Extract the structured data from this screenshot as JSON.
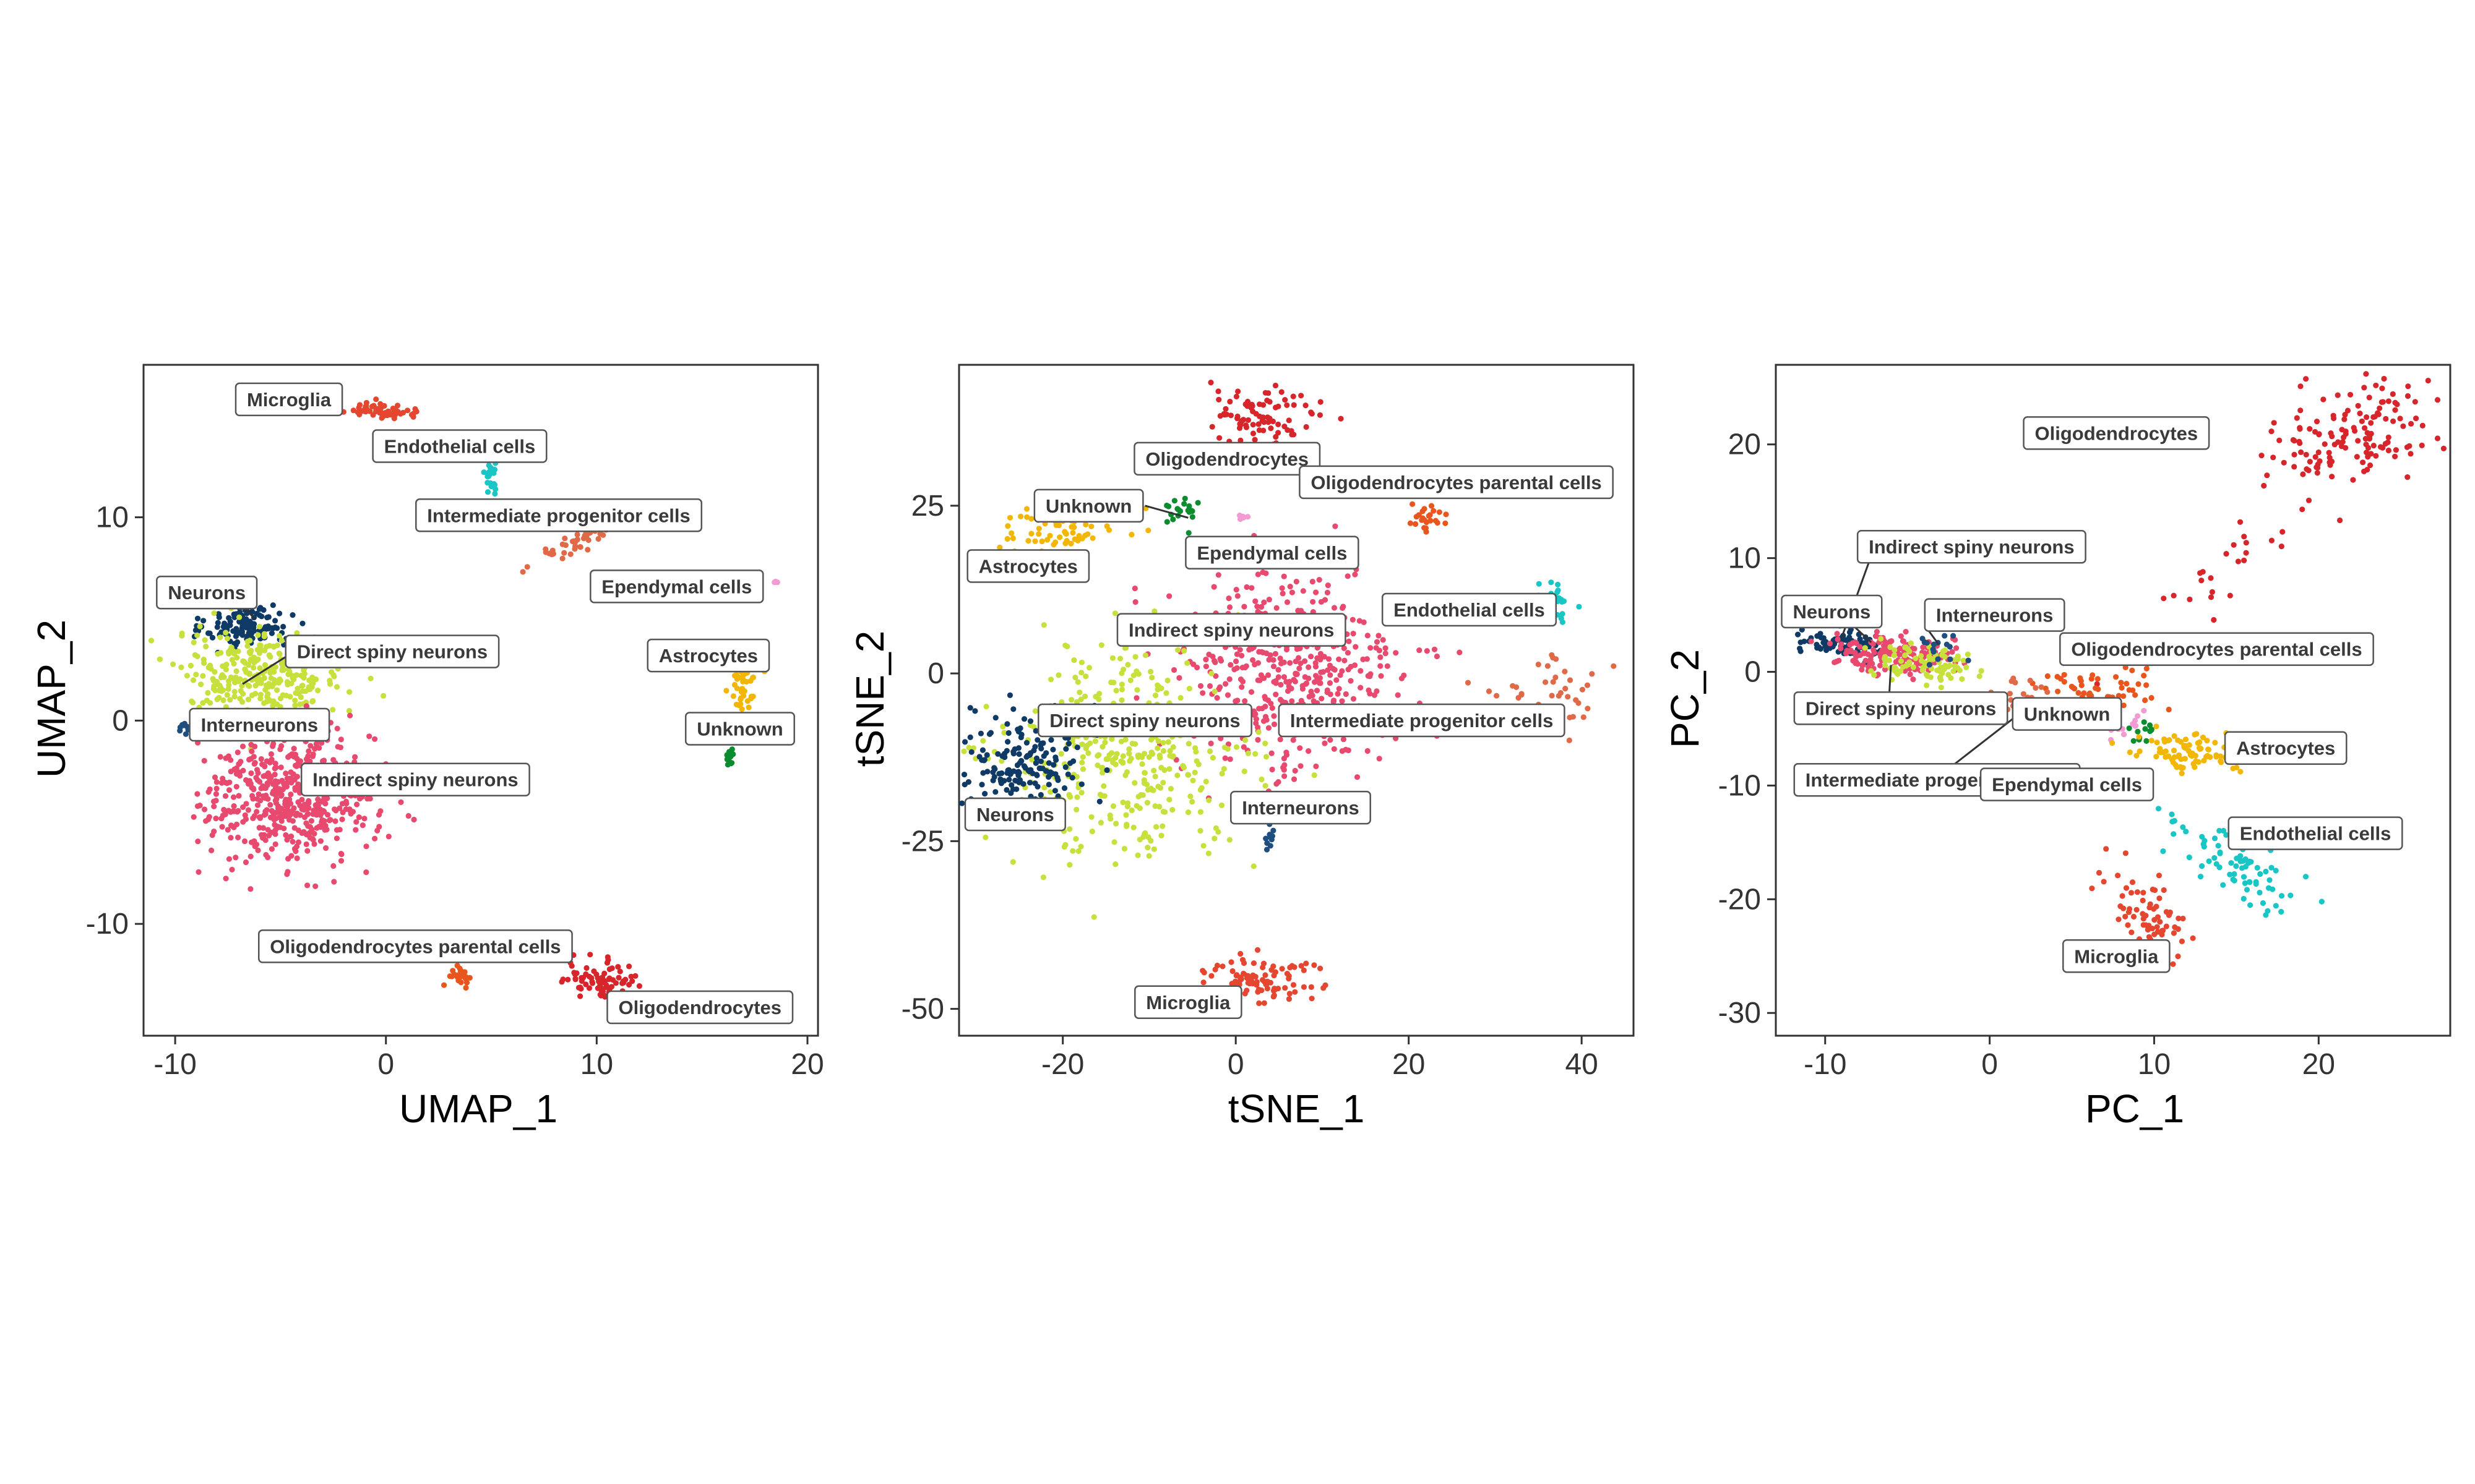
{
  "palette": {
    "Oligodendrocytes": "#d7262b",
    "Microglia": "#e4462f",
    "Endothelial cells": "#19c5c5",
    "Intermediate progenitor cells": "#e06a48",
    "Ependymal cells": "#f29ad2",
    "Astrocytes": "#f2b705",
    "Unknown": "#0b8c2e",
    "Neurons": "#0f3a66",
    "Direct spiny neurons": "#c8e03c",
    "Interneurons": "#1f4f80",
    "Indirect spiny neurons": "#e8496e",
    "Oligodendrocytes parental cells": "#e8561e"
  },
  "chart_data": [
    {
      "type": "scatter",
      "xlabel": "UMAP_1",
      "ylabel": "UMAP_2",
      "xlim": [
        -11.5,
        20.5
      ],
      "ylim": [
        -15.5,
        17.5
      ],
      "xticks": [
        -10,
        0,
        10,
        20
      ],
      "xtick_labels": [
        "-10",
        "0",
        "10",
        "20"
      ],
      "yticks": [
        -10,
        0,
        10
      ],
      "ytick_labels": [
        "-10",
        "0",
        "10"
      ],
      "clusters": [
        {
          "name": "Microglia",
          "cx": -0.5,
          "cy": 15.3,
          "sx": 1.0,
          "sy": 0.2,
          "n": 60,
          "angle": -5,
          "label": {
            "text": "Microglia",
            "x": -4.6,
            "y": 15.8
          }
        },
        {
          "name": "Endothelial cells",
          "cx": 5.0,
          "cy": 12.0,
          "sx": 0.15,
          "sy": 0.6,
          "n": 25,
          "angle": 0,
          "label": {
            "text": "Endothelial cells",
            "x": 3.5,
            "y": 13.5
          }
        },
        {
          "name": "Intermediate progenitor cells",
          "cx": 9.0,
          "cy": 8.8,
          "sx": 1.2,
          "sy": 0.3,
          "n": 45,
          "angle": 30,
          "label": {
            "text": "Intermediate progenitor cells",
            "x": 8.2,
            "y": 10.1
          }
        },
        {
          "name": "Ependymal cells",
          "cx": 18.5,
          "cy": 6.9,
          "sx": 0.08,
          "sy": 0.1,
          "n": 4,
          "angle": 0,
          "label": {
            "text": "Ependymal cells",
            "x": 13.8,
            "y": 6.6
          }
        },
        {
          "name": "Astrocytes",
          "cx": 17.0,
          "cy": 1.8,
          "sx": 0.3,
          "sy": 0.8,
          "n": 50,
          "angle": 0,
          "label": {
            "text": "Astrocytes",
            "x": 15.3,
            "y": 3.2
          }
        },
        {
          "name": "Unknown",
          "cx": 16.3,
          "cy": -1.8,
          "sx": 0.1,
          "sy": 0.3,
          "n": 15,
          "angle": 0,
          "label": {
            "text": "Unknown",
            "x": 16.8,
            "y": -0.4
          }
        },
        {
          "name": "Neurons",
          "cx": -6.5,
          "cy": 4.6,
          "sx": 1.0,
          "sy": 0.55,
          "n": 130,
          "angle": 0,
          "label": {
            "text": "Neurons",
            "x": -8.5,
            "y": 6.3
          }
        },
        {
          "name": "Direct spiny neurons",
          "cx": -6.0,
          "cy": 2.2,
          "sx": 2.0,
          "sy": 1.1,
          "n": 300,
          "angle": 0,
          "label": {
            "text": "Direct spiny neurons",
            "x": 0.3,
            "y": 3.4
          }
        },
        {
          "name": "Interneurons",
          "cx": -9.5,
          "cy": -0.4,
          "sx": 0.3,
          "sy": 0.12,
          "n": 10,
          "angle": -30,
          "label": {
            "text": "Interneurons",
            "x": -6.0,
            "y": -0.2
          }
        },
        {
          "name": "Indirect spiny neurons",
          "cx": -4.5,
          "cy": -3.8,
          "sx": 2.0,
          "sy": 1.6,
          "n": 520,
          "angle": 0,
          "label": {
            "text": "Indirect spiny neurons",
            "x": 1.4,
            "y": -2.9
          }
        },
        {
          "name": "Oligodendrocytes parental cells",
          "cx": 3.5,
          "cy": -12.5,
          "sx": 0.3,
          "sy": 0.3,
          "n": 25,
          "angle": 0,
          "label": {
            "text": "Oligodendrocytes parental cells",
            "x": 1.4,
            "y": -11.1
          }
        },
        {
          "name": "Oligodendrocytes",
          "cx": 10.3,
          "cy": -12.8,
          "sx": 0.9,
          "sy": 0.45,
          "n": 80,
          "angle": -20,
          "label": {
            "text": "Oligodendrocytes",
            "x": 14.9,
            "y": -14.1
          }
        }
      ],
      "leaders": [
        {
          "x1": -6.8,
          "y1": 1.8,
          "x2": -4.5,
          "y2": 3.3
        },
        {
          "x1": -6.8,
          "y1": 5.6,
          "x2": -6.2,
          "y2": 5.0
        }
      ]
    },
    {
      "type": "scatter",
      "xlabel": "tSNE_1",
      "ylabel": "tSNE_2",
      "xlim": [
        -32,
        46
      ],
      "ylim": [
        -54,
        46
      ],
      "xticks": [
        -20,
        0,
        20,
        40
      ],
      "xtick_labels": [
        "-20",
        "0",
        "20",
        "40"
      ],
      "yticks": [
        -50,
        -25,
        0,
        25
      ],
      "ytick_labels": [
        "-50",
        "-25",
        "0",
        "25"
      ],
      "clusters": [
        {
          "name": "Oligodendrocytes",
          "cx": 3.0,
          "cy": 38.0,
          "sx": 3.5,
          "sy": 2.5,
          "n": 90,
          "angle": 0,
          "label": {
            "text": "Oligodendrocytes",
            "x": -1.0,
            "y": 32.0
          }
        },
        {
          "name": "Oligodendrocytes parental cells",
          "cx": 22.0,
          "cy": 23.0,
          "sx": 1.3,
          "sy": 1.2,
          "n": 25,
          "angle": 0,
          "label": {
            "text": "Oligodendrocytes parental cells",
            "x": 25.5,
            "y": 28.5
          }
        },
        {
          "name": "Unknown",
          "cx": -6.0,
          "cy": 24.0,
          "sx": 1.0,
          "sy": 1.0,
          "n": 20,
          "angle": 0,
          "label": {
            "text": "Unknown",
            "x": -17.0,
            "y": 25.0
          }
        },
        {
          "name": "Ependymal cells",
          "cx": 0.5,
          "cy": 23.3,
          "sx": 0.5,
          "sy": 0.2,
          "n": 5,
          "angle": 0,
          "label": {
            "text": "Ependymal cells",
            "x": 4.2,
            "y": 18.0
          }
        },
        {
          "name": "Astrocytes",
          "cx": -20.0,
          "cy": 22.0,
          "sx": 4.0,
          "sy": 1.8,
          "n": 70,
          "angle": 0,
          "label": {
            "text": "Astrocytes",
            "x": -24.0,
            "y": 16.0
          }
        },
        {
          "name": "Endothelial cells",
          "cx": 37.0,
          "cy": 11.0,
          "sx": 1.0,
          "sy": 1.3,
          "n": 30,
          "angle": 0,
          "label": {
            "text": "Endothelial cells",
            "x": 27.0,
            "y": 9.5
          }
        },
        {
          "name": "Indirect spiny neurons",
          "cx": 6.0,
          "cy": 0.0,
          "sx": 6.5,
          "sy": 8.0,
          "n": 500,
          "angle": 0,
          "label": {
            "text": "Indirect spiny neurons",
            "x": -0.5,
            "y": 6.5
          }
        },
        {
          "name": "Intermediate progenitor cells",
          "cx": 36.0,
          "cy": -3.0,
          "sx": 4.0,
          "sy": 3.0,
          "n": 40,
          "angle": -35,
          "label": {
            "text": "Intermediate progenitor cells",
            "x": 21.5,
            "y": -7.0
          }
        },
        {
          "name": "Direct spiny neurons",
          "cx": -13.0,
          "cy": -12.0,
          "sx": 7.0,
          "sy": 7.5,
          "n": 400,
          "angle": 0,
          "label": {
            "text": "Direct spiny neurons",
            "x": -10.5,
            "y": -7.0
          }
        },
        {
          "name": "Neurons",
          "cx": -24.0,
          "cy": -13.0,
          "sx": 3.5,
          "sy": 4.0,
          "n": 180,
          "angle": 0,
          "label": {
            "text": "Neurons",
            "x": -25.5,
            "y": -21.0
          }
        },
        {
          "name": "Interneurons",
          "cx": 3.7,
          "cy": -24.0,
          "sx": 0.5,
          "sy": 1.0,
          "n": 10,
          "angle": 0,
          "label": {
            "text": "Interneurons",
            "x": 7.5,
            "y": -20.0
          }
        },
        {
          "name": "Microglia",
          "cx": 2.5,
          "cy": -45.5,
          "sx": 3.0,
          "sy": 2.0,
          "n": 90,
          "angle": 0,
          "label": {
            "text": "Microglia",
            "x": -5.5,
            "y": -49.0
          }
        }
      ],
      "leaders": [
        {
          "x1": -10.5,
          "y1": 25.0,
          "x2": -5.5,
          "y2": 23.2
        }
      ]
    },
    {
      "type": "scatter",
      "xlabel": "PC_1",
      "ylabel": "PC_2",
      "xlim": [
        -13,
        28
      ],
      "ylim": [
        -32,
        27
      ],
      "xticks": [
        -10,
        0,
        10,
        20
      ],
      "xtick_labels": [
        "-10",
        "0",
        "10",
        "20"
      ],
      "yticks": [
        -30,
        -20,
        -10,
        0,
        10,
        20
      ],
      "ytick_labels": [
        "-30",
        "-20",
        "-10",
        "0",
        "10",
        "20"
      ],
      "clusters": [
        {
          "name": "Oligodendrocytes",
          "cx": 22.0,
          "cy": 21.0,
          "sx": 3.0,
          "sy": 2.0,
          "n": 140,
          "angle": 35,
          "label": {
            "text": "Oligodendrocytes",
            "x": 7.7,
            "y": 21.0
          }
        },
        {
          "name": "Oligodendrocytes",
          "cx": 15.0,
          "cy": 10.0,
          "sx": 5.0,
          "sy": 1.2,
          "n": 25,
          "angle": 55,
          "label": null
        },
        {
          "name": "Neurons",
          "cx": -9.0,
          "cy": 2.5,
          "sx": 1.2,
          "sy": 0.6,
          "n": 80,
          "angle": -10,
          "label": {
            "text": "Neurons",
            "x": -9.6,
            "y": 5.3
          }
        },
        {
          "name": "Indirect spiny neurons",
          "cx": -6.0,
          "cy": 1.5,
          "sx": 1.8,
          "sy": 0.9,
          "n": 160,
          "angle": -10,
          "label": {
            "text": "Indirect spiny neurons",
            "x": -1.1,
            "y": 11.0
          }
        },
        {
          "name": "Direct spiny neurons",
          "cx": -4.0,
          "cy": 0.8,
          "sx": 1.5,
          "sy": 0.8,
          "n": 90,
          "angle": -10,
          "label": {
            "text": "Direct spiny neurons",
            "x": -5.4,
            "y": -3.2
          }
        },
        {
          "name": "Interneurons",
          "cx": -3.0,
          "cy": 2.3,
          "sx": 0.8,
          "sy": 0.6,
          "n": 15,
          "angle": 0,
          "label": {
            "text": "Interneurons",
            "x": 0.3,
            "y": 5.0
          }
        },
        {
          "name": "Oligodendrocytes parental cells",
          "cx": 7.0,
          "cy": -1.5,
          "sx": 2.0,
          "sy": 1.2,
          "n": 60,
          "angle": -20,
          "label": {
            "text": "Oligodendrocytes parental cells",
            "x": 13.8,
            "y": 2.0
          }
        },
        {
          "name": "Intermediate progenitor cells",
          "cx": 2.0,
          "cy": -2.0,
          "sx": 0.8,
          "sy": 0.8,
          "n": 20,
          "angle": 0,
          "label": {
            "text": "Intermediate progenitor cells",
            "x": -3.2,
            "y": -9.5
          }
        },
        {
          "name": "Unknown",
          "cx": 9.0,
          "cy": -5.5,
          "sx": 0.6,
          "sy": 0.5,
          "n": 12,
          "angle": 0,
          "label": {
            "text": "Unknown",
            "x": 4.7,
            "y": -3.7
          }
        },
        {
          "name": "Ependymal cells",
          "cx": 8.5,
          "cy": -5.0,
          "sx": 0.8,
          "sy": 0.6,
          "n": 12,
          "angle": 0,
          "label": {
            "text": "Ependymal cells",
            "x": 4.7,
            "y": -9.9
          }
        },
        {
          "name": "Astrocytes",
          "cx": 12.5,
          "cy": -7.0,
          "sx": 1.8,
          "sy": 0.9,
          "n": 90,
          "angle": 0,
          "label": {
            "text": "Astrocytes",
            "x": 18.0,
            "y": -6.7
          }
        },
        {
          "name": "Endothelial cells",
          "cx": 15.0,
          "cy": -17.0,
          "sx": 3.2,
          "sy": 0.9,
          "n": 75,
          "angle": -40,
          "label": {
            "text": "Endothelial cells",
            "x": 19.8,
            "y": -14.2
          }
        },
        {
          "name": "Microglia",
          "cx": 9.5,
          "cy": -21.5,
          "sx": 0.9,
          "sy": 2.5,
          "n": 80,
          "angle": 20,
          "label": {
            "text": "Microglia",
            "x": 7.7,
            "y": -25.0
          }
        }
      ],
      "leaders": [
        {
          "x1": -7.3,
          "y1": 9.8,
          "x2": -9.0,
          "y2": 3.0
        },
        {
          "x1": -8.4,
          "y1": 4.2,
          "x2": -7.2,
          "y2": 2.6
        },
        {
          "x1": -3.8,
          "y1": 3.8,
          "x2": -3.1,
          "y2": 2.4
        },
        {
          "x1": -6.1,
          "y1": -1.9,
          "x2": -6.0,
          "y2": 0.6
        },
        {
          "x1": 2.5,
          "y1": -2.9,
          "x2": -2.3,
          "y2": -8.3
        },
        {
          "x1": 3.1,
          "y1": -9.0,
          "x2": 3.1,
          "y2": -9.0
        }
      ]
    }
  ]
}
